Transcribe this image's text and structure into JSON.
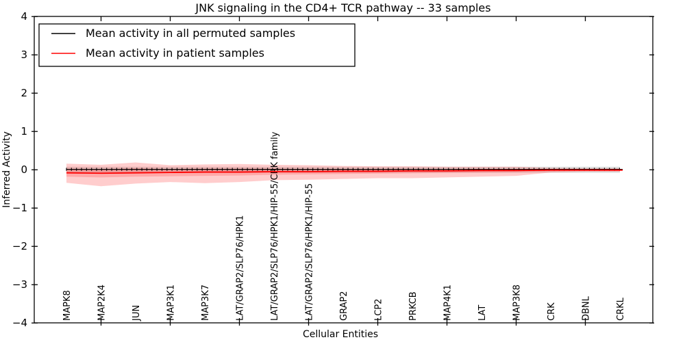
{
  "figure": {
    "title": "JNK signaling in the CD4+ TCR pathway -- 33 samples",
    "xlabel": "Cellular Entities",
    "ylabel": "Inferred Activity"
  },
  "legend": {
    "entries": [
      {
        "label": "Mean activity in all permuted samples",
        "color": "#000000"
      },
      {
        "label": "Mean activity in patient samples",
        "color": "#ff0000"
      }
    ],
    "position": "upper left"
  },
  "chart_data": {
    "type": "line",
    "title": "JNK signaling in the CD4+ TCR pathway -- 33 samples",
    "xlabel": "Cellular Entities",
    "ylabel": "Inferred Activity",
    "ylim": [
      -4,
      4
    ],
    "yticks": [
      -4,
      -3,
      -2,
      -1,
      0,
      1,
      2,
      3,
      4
    ],
    "grid": false,
    "legend_position": "upper left",
    "categories": [
      "MAPK8",
      "MAP2K4",
      "JUN",
      "MAP3K1",
      "MAP3K7",
      "LAT/GRAP2/SLP76/HPK1",
      "LAT/GRAP2/SLP76/HPK1/HIP-55/CRK family",
      "LAT/GRAP2/SLP76/HPK1/HIP-55",
      "GRAP2",
      "LCP2",
      "PRKCB",
      "MAP4K1",
      "LAT",
      "MAP3K8",
      "CRK",
      "DBNL",
      "CRKL"
    ],
    "series": [
      {
        "name": "Mean activity in all permuted samples",
        "color": "#000000",
        "marker": "tick",
        "values": [
          0.01,
          0.01,
          0.01,
          0.01,
          0.01,
          0.01,
          0.01,
          0.01,
          0.01,
          0.01,
          0.01,
          0.01,
          0.01,
          0.01,
          0.01,
          0.01,
          0.01
        ]
      },
      {
        "name": "Mean activity in patient samples",
        "color": "#ff0000",
        "marker": "none",
        "values": [
          -0.08,
          -0.09,
          -0.08,
          -0.07,
          -0.06,
          -0.06,
          -0.05,
          -0.05,
          -0.04,
          -0.04,
          -0.03,
          -0.03,
          -0.02,
          -0.02,
          -0.01,
          -0.01,
          -0.01
        ]
      }
    ],
    "bands": [
      {
        "name": "permuted-sample-range",
        "color": "#000000",
        "opacity": 0.13,
        "upper": [
          0.08,
          0.08,
          0.08,
          0.08,
          0.08,
          0.08,
          0.08,
          0.08,
          0.08,
          0.08,
          0.08,
          0.08,
          0.08,
          0.08,
          0.08,
          0.08,
          0.08
        ],
        "lower": [
          -0.08,
          -0.08,
          -0.08,
          -0.08,
          -0.08,
          -0.08,
          -0.08,
          -0.08,
          -0.08,
          -0.08,
          -0.08,
          -0.08,
          -0.08,
          -0.08,
          -0.08,
          -0.08,
          -0.08
        ]
      },
      {
        "name": "patient-range-outer",
        "color": "#ff4d4d",
        "opacity": 0.28,
        "upper": [
          0.16,
          0.13,
          0.19,
          0.12,
          0.14,
          0.15,
          0.13,
          0.12,
          0.1,
          0.09,
          0.09,
          0.08,
          0.08,
          0.08,
          0.05,
          0.04,
          0.04
        ],
        "lower": [
          -0.34,
          -0.43,
          -0.36,
          -0.32,
          -0.35,
          -0.32,
          -0.27,
          -0.26,
          -0.24,
          -0.22,
          -0.22,
          -0.2,
          -0.18,
          -0.16,
          -0.07,
          -0.05,
          -0.05
        ]
      },
      {
        "name": "patient-range-inner",
        "color": "#ff4d4d",
        "opacity": 0.28,
        "upper": [
          0.03,
          0.02,
          0.04,
          0.02,
          0.03,
          0.03,
          0.03,
          0.02,
          0.02,
          0.02,
          0.02,
          0.02,
          0.02,
          0.02,
          0.02,
          0.02,
          0.02
        ],
        "lower": [
          -0.18,
          -0.2,
          -0.18,
          -0.17,
          -0.16,
          -0.15,
          -0.13,
          -0.12,
          -0.11,
          -0.1,
          -0.09,
          -0.08,
          -0.07,
          -0.06,
          -0.04,
          -0.03,
          -0.03
        ]
      }
    ]
  }
}
